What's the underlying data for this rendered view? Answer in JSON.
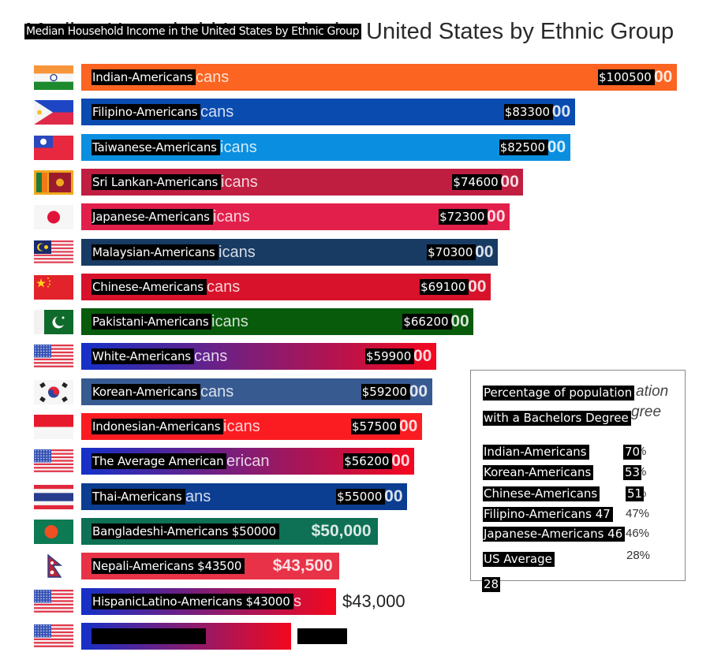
{
  "chart_data": {
    "type": "bar",
    "orientation": "horizontal",
    "title": "Median Household Income in the United States by Ethnic Group",
    "title_background": "Median Household Income in the United States  by Ethnic Group",
    "xlabel": "",
    "ylabel": "",
    "xlim": [
      0,
      100500
    ],
    "grid": false,
    "categories": [
      "Indian-Americans",
      "Filipino-Americans",
      "Taiwanese-Americans",
      "Sri Lankan-Americans",
      "Japanese-Americans",
      "Malaysian-Americans",
      "Chinese-Americans",
      "Pakistani-Americans",
      "White-Americans",
      "Korean-Americans",
      "Indonesian-Americans",
      "The Average American",
      "Thai-Americans",
      "Bangladeshi-Americans $50000",
      "Nepali-Americans $43500",
      "HispanicLatino-Americans $43000",
      ""
    ],
    "values": [
      100500,
      83300,
      82500,
      74600,
      72300,
      70300,
      69100,
      66200,
      59900,
      59200,
      57500,
      56200,
      55000,
      50000,
      43500,
      43000,
      35400
    ],
    "value_labels": [
      "$100500",
      "$83300",
      "$82500",
      "$74600",
      "$72300",
      "$70300",
      "$69100",
      "$66200",
      "$59900",
      "$59200",
      "$57500",
      "$56200",
      "$55000",
      "",
      "",
      "",
      ""
    ],
    "background_label_tails": [
      "cans",
      "cans",
      "icans",
      "icans",
      "icans",
      "icans",
      "cans",
      "icans",
      "cans",
      "cans",
      "icans",
      "erican",
      "ans",
      "",
      "",
      "s",
      ""
    ],
    "background_value_tails": [
      "00",
      "00",
      "00",
      "00",
      "00",
      "00",
      "00",
      "00",
      "00",
      "00",
      "00",
      "00",
      "00",
      "$50,000",
      "$43,500",
      "$43,000",
      ""
    ],
    "flags": [
      "india-flag-icon",
      "philippines-flag-icon",
      "taiwan-flag-icon",
      "sri-lanka-flag-icon",
      "japan-flag-icon",
      "malaysia-flag-icon",
      "china-flag-icon",
      "pakistan-flag-icon",
      "usa-flag-icon",
      "south-korea-flag-icon",
      "indonesia-flag-icon",
      "usa-flag-icon",
      "thailand-flag-icon",
      "bangladesh-flag-icon",
      "nepal-flag-icon",
      "usa-flag-icon",
      "usa-flag-icon"
    ],
    "colors": [
      "#fb6421",
      "#0a4bb0",
      "#0a8fe0",
      "#c01e41",
      "#e21f4b",
      "#183b63",
      "#d8122a",
      "#075b0b",
      "gradient:#1530c8-#f4081e",
      "#375a91",
      "#fb1c22",
      "gradient:#1530c8-#f4081e",
      "#0b3d91",
      "#0e7055",
      "#e83248",
      "gradient:#1530c8-#f4081e",
      "gradient:#1530c8-#f4081e"
    ]
  },
  "inset": {
    "title_line1": "Percentage of population",
    "title_line2": "with a Bachelors Degree",
    "title_ghost_line1": "ation",
    "title_ghost_line2": "gree",
    "rows": [
      {
        "label": "Indian-Americans",
        "value": "70",
        "pct": "%"
      },
      {
        "label": "Korean-Americans",
        "value": "53",
        "pct": "%"
      },
      {
        "label": "Chinese-Americans",
        "value": "51",
        "pct": "%"
      },
      {
        "label": "Filipino-Americans 47",
        "value": "",
        "pct": "47%"
      },
      {
        "label": "Japanese-Americans 46",
        "value": "",
        "pct": "46%"
      }
    ],
    "us_average_label": "US Average",
    "us_average_pct": "28%",
    "us_average_value": "28"
  }
}
